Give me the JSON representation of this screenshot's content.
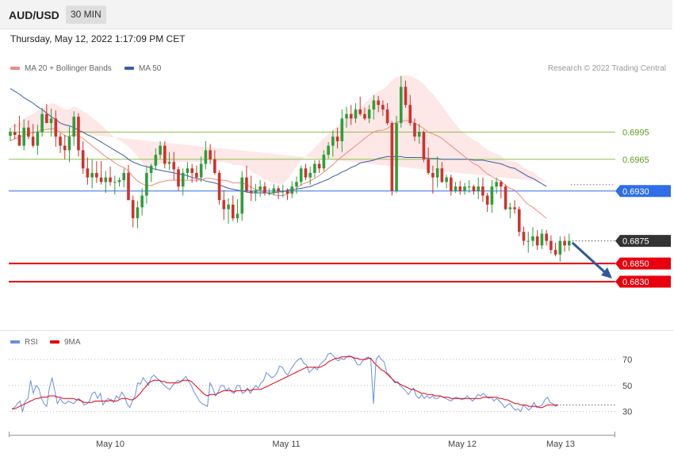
{
  "header": {
    "symbol": "AUD/USD",
    "timeframe": "30 MIN"
  },
  "datetime": "Thursday, May 12, 2022 1:17:09 PM CET",
  "legend": {
    "ma20_label": "MA 20 + Bollinger Bands",
    "ma50_label": "MA 50",
    "credit": "Research © 2022 Trading Central",
    "rsi_label": "RSI",
    "rsi_ma_label": "9MA"
  },
  "colors": {
    "up": "#2e9e3a",
    "down": "#d0312d",
    "band": "#fde3e3",
    "ma20": "#f08a80",
    "ma50": "#3b5ea8",
    "support": "#e8000d",
    "pivot": "#2f6ee8",
    "resistance": "#8ec24a",
    "last": "#333333",
    "rsi": "#6a8fe0",
    "rsi_ma": "#e3000f"
  },
  "chart_data": [
    {
      "type": "candlestick",
      "y_range": [
        0.6795,
        0.7062
      ],
      "x_tick_labels": [
        "May 10",
        "May 11",
        "May 12",
        "May 13"
      ],
      "ohlc_compact": "0.6991,0.7000,0.6985,0.6995;0.6995,0.7004,0.6987,0.6992;0.6992,0.7013,0.6981,0.6980;0.6980,0.7009,0.6975,0.7000;0.7000,0.7008,0.6987,0.6990;0.6990,0.7004,0.6978,0.6980;0.6980,0.7003,0.6970,0.6995;0.6995,0.7022,0.6990,0.7015;0.7015,0.7026,0.7005,0.7005;0.7005,0.7021,0.6990,0.7010;0.7010,0.7019,0.6979,0.6990;0.6990,0.6994,0.6972,0.6980;0.6980,0.6992,0.6965,0.6975;0.6975,0.7001,0.6962,0.6990;0.6990,0.7018,0.6980,0.7012;0.7012,0.7016,0.6968,0.6975;0.6975,0.6985,0.6949,0.6955;0.6955,0.6967,0.6937,0.6945;0.6945,0.6965,0.6933,0.6950;0.6950,0.6963,0.6939,0.6945;0.6945,0.6963,0.6937,0.6940;0.6940,0.6952,0.6928,0.6945;0.6945,0.6957,0.6936,0.6940;0.6940,0.6947,0.6926,0.6940;0.6940,0.6945,0.6935,0.6942;0.6942,0.6955,0.6934,0.6950;0.6950,0.6959,0.6920,0.6920;0.6920,0.6925,0.6890,0.6900;0.6900,0.6919,0.6889,0.6912;0.6912,0.6933,0.6903,0.6925;0.6925,0.6957,0.6916,0.6950;0.6950,0.6960,0.6940,0.6958;0.6958,0.6977,0.6953,0.6970;0.6970,0.6985,0.6966,0.6980;0.6980,0.6985,0.6955,0.6960;0.6960,0.6973,0.6953,0.6962;0.6962,0.6973,0.6942,0.6954;0.6954,0.6957,0.6930,0.6935;0.6935,0.6955,0.6925,0.6950;0.6950,0.6962,0.6943,0.6955;0.6955,0.6960,0.6939,0.6950;0.6950,0.6958,0.6940,0.6945;0.6945,0.6968,0.6940,0.6960;0.6960,0.6985,0.6954,0.6975;0.6975,0.6982,0.6960,0.6965;0.6965,0.6975,0.6948,0.6950;0.6950,0.6953,0.6915,0.6920;0.6920,0.6931,0.6898,0.6910;0.6910,0.6922,0.6894,0.6915;0.6915,0.6925,0.6897,0.6900;0.6900,0.6921,0.6895,0.6905;0.6905,0.6952,0.6897,0.6945;0.6945,0.6958,0.6928,0.6930;0.6930,0.6947,0.6919,0.6928;0.6928,0.6938,0.6919,0.6931;0.6931,0.6942,0.6924,0.6935;0.6935,0.6940,0.6925,0.6928;0.6928,0.6933,0.6925,0.6928;0.6928,0.6938,0.6925,0.6933;0.6933,0.6936,0.6921,0.6930;0.6930,0.6937,0.6923,0.6930;0.6930,0.6933,0.6920,0.6927;0.6927,0.6941,0.6922,0.6935;0.6935,0.6946,0.6927,0.6940;0.6940,0.6958,0.6936,0.6955;0.6955,0.6960,0.6942,0.6945;0.6945,0.6957,0.6937,0.6950;0.6950,0.6964,0.6945,0.6960;0.6960,0.6964,0.6950,0.6955;0.6955,0.6975,0.6952,0.6970;0.6970,0.6984,0.6966,0.6980;0.6980,0.6997,0.6968,0.6990;0.6990,0.7000,0.6977,0.6985;0.6985,0.7020,0.6973,0.7010;0.7010,0.7023,0.7000,0.7015;0.7015,0.7025,0.7003,0.7010;0.7010,0.7027,0.7005,0.7020;0.7020,0.7034,0.7013,0.7015;0.7015,0.7022,0.7008,0.7010;0.7010,0.7025,0.7005,0.7020;0.7020,0.7036,0.7009,0.7030;0.7030,0.7035,0.7017,0.7025;0.7025,0.7030,0.7013,0.7020;0.7020,0.7027,0.7003,0.7005;0.7005,0.7007,0.6925,0.6930;0.6930,0.7013,0.6928,0.7005;0.7005,0.7057,0.7000,0.7045;0.7045,0.7052,0.7022,0.7025;0.7025,0.7036,0.7002,0.7005;0.7005,0.7010,0.6985,0.6990;0.6990,0.7004,0.6982,0.6995;0.6995,0.6997,0.6962,0.6965;0.6965,0.6978,0.6948,0.6950;0.6950,0.6958,0.6927,0.6945;0.6945,0.6968,0.6934,0.6955;0.6955,0.6962,0.6939,0.6940;0.6940,0.6948,0.6933,0.6945;0.6945,0.6948,0.6925,0.6930;0.6930,0.6940,0.6928,0.6935;0.6935,0.6941,0.6926,0.6930;0.6930,0.6939,0.6926,0.6935;0.6935,0.6942,0.6928,0.6935;0.6935,0.6937,0.6926,0.6930;0.6930,0.6945,0.6921,0.6935;0.6935,0.6945,0.6918,0.6925;0.6925,0.6928,0.6907,0.6915;0.6915,0.6942,0.6906,0.6935;0.6935,0.6945,0.6927,0.6940;0.6940,0.6942,0.6922,0.6935;0.6935,0.6937,0.6909,0.6910;0.6910,0.6917,0.6900,0.6912;0.6912,0.6920,0.6905,0.6910;0.6910,0.6913,0.6880,0.6885;0.6885,0.6891,0.6870,0.6875;0.6875,0.6885,0.6862,0.6875;0.6875,0.6890,0.6869,0.6880;0.6880,0.6887,0.6865,0.6870;0.6870,0.6888,0.6866,0.6883;0.6883,0.6887,0.6870,0.6875;0.6875,0.6881,0.6861,0.6865;0.6865,0.6873,0.6858,0.6860;0.6860,0.6880,0.6852,0.6875;0.6875,0.6880,0.6863,0.6870;0.6870,0.6883,0.6864,0.6875",
      "ma50": [
        0.7043,
        0.704,
        0.7037,
        0.7033,
        0.703,
        0.7027,
        0.7023,
        0.702,
        0.7016,
        0.7012,
        0.7009,
        0.7005,
        0.7003,
        0.7002,
        0.7,
        0.6997,
        0.6995,
        0.6992,
        0.699,
        0.6987,
        0.6984,
        0.6981,
        0.6978,
        0.6975,
        0.6972,
        0.6969,
        0.6965,
        0.6962,
        0.696,
        0.6958,
        0.6957,
        0.6955,
        0.6954,
        0.6953,
        0.6952,
        0.6951,
        0.695,
        0.6949,
        0.6948,
        0.6947,
        0.6945,
        0.6944,
        0.6943,
        0.6941,
        0.694,
        0.6939,
        0.6937,
        0.6935,
        0.6933,
        0.6932,
        0.6931,
        0.693,
        0.6929,
        0.6928,
        0.6928,
        0.6928,
        0.6928,
        0.6928,
        0.6928,
        0.6929,
        0.6929,
        0.6931,
        0.6932,
        0.6932,
        0.6933,
        0.6934,
        0.6935,
        0.6937,
        0.6939,
        0.6941,
        0.6943,
        0.6946,
        0.6948,
        0.6951,
        0.6953,
        0.6956,
        0.6958,
        0.6961,
        0.6962,
        0.6963,
        0.6964,
        0.6966,
        0.6967,
        0.6968,
        0.6968,
        0.6968,
        0.6968,
        0.6967,
        0.6967,
        0.6967,
        0.6967,
        0.6967,
        0.6966,
        0.6966,
        0.6966,
        0.6965,
        0.6965,
        0.6965,
        0.6965,
        0.6965,
        0.6965,
        0.6965,
        0.6964,
        0.6964,
        0.6964,
        0.6963,
        0.6962,
        0.6961,
        0.696,
        0.6958,
        0.6956,
        0.6955,
        0.6952,
        0.6949,
        0.6946,
        0.6944,
        0.6941,
        0.6938,
        0.6935
      ],
      "ma20": [
        0.6985,
        0.6988,
        0.6989,
        0.6992,
        0.6993,
        0.6994,
        0.6996,
        0.6997,
        0.6998,
        0.6999,
        0.6998,
        0.6995,
        0.6991,
        0.699,
        0.6993,
        0.6991,
        0.6988,
        0.6984,
        0.698,
        0.6976,
        0.6972,
        0.6968,
        0.6965,
        0.6961,
        0.6958,
        0.6956,
        0.6952,
        0.6946,
        0.6941,
        0.6938,
        0.6936,
        0.6936,
        0.6938,
        0.694,
        0.6941,
        0.6942,
        0.6942,
        0.6942,
        0.6942,
        0.6942,
        0.6942,
        0.6942,
        0.6942,
        0.6944,
        0.6944,
        0.6943,
        0.6942,
        0.6942,
        0.6941,
        0.6939,
        0.6939,
        0.6939,
        0.6937,
        0.6934,
        0.6932,
        0.693,
        0.6928,
        0.6927,
        0.6926,
        0.6925,
        0.6925,
        0.6927,
        0.693,
        0.6933,
        0.6937,
        0.6939,
        0.6941,
        0.6944,
        0.6947,
        0.6951,
        0.6955,
        0.6959,
        0.6964,
        0.6968,
        0.6972,
        0.6976,
        0.698,
        0.6984,
        0.6988,
        0.6992,
        0.6995,
        0.6997,
        0.6997,
        0.6999,
        0.7003,
        0.7006,
        0.7007,
        0.7008,
        0.7007,
        0.7005,
        0.7002,
        0.6999,
        0.6995,
        0.6993,
        0.6991,
        0.6988,
        0.6984,
        0.698,
        0.6976,
        0.6972,
        0.6968,
        0.6964,
        0.696,
        0.6958,
        0.6953,
        0.6949,
        0.6946,
        0.6943,
        0.6941,
        0.6936,
        0.6933,
        0.6931,
        0.6926,
        0.692,
        0.6915,
        0.6912,
        0.6908,
        0.6904,
        0.69
      ],
      "bb_width": [
        0.0016,
        0.0016,
        0.0016,
        0.0018,
        0.002,
        0.0021,
        0.0023,
        0.0024,
        0.0026,
        0.0028,
        0.0028,
        0.0028,
        0.0029,
        0.003,
        0.003,
        0.003,
        0.003,
        0.0031,
        0.0031,
        0.0031,
        0.0031,
        0.003,
        0.0029,
        0.0028,
        0.0028,
        0.0027,
        0.0027,
        0.0028,
        0.0027,
        0.0024,
        0.002,
        0.002,
        0.002,
        0.002,
        0.002,
        0.002,
        0.002,
        0.002,
        0.002,
        0.002,
        0.002,
        0.002,
        0.002,
        0.002,
        0.002,
        0.002,
        0.002,
        0.002,
        0.002,
        0.002,
        0.002,
        0.0019,
        0.0019,
        0.0018,
        0.0017,
        0.0016,
        0.0015,
        0.0014,
        0.0013,
        0.0013,
        0.0013,
        0.0016,
        0.002,
        0.0024,
        0.0027,
        0.0029,
        0.0032,
        0.0034,
        0.0036,
        0.0037,
        0.0038,
        0.0038,
        0.0038,
        0.0038,
        0.0038,
        0.0038,
        0.0038,
        0.0038,
        0.0038,
        0.004,
        0.0041,
        0.0043,
        0.0045,
        0.0047,
        0.0049,
        0.005,
        0.005,
        0.005,
        0.005,
        0.005,
        0.005,
        0.0049,
        0.0047,
        0.0044,
        0.004,
        0.0036,
        0.0033,
        0.003,
        0.0028,
        0.0026,
        0.0026,
        0.0026,
        0.0026,
        0.0026,
        0.0026,
        0.0027,
        0.0027,
        0.0028,
        0.0028,
        0.0028,
        0.003,
        0.0032,
        0.0034,
        0.0036,
        0.0038,
        0.0039,
        0.0039,
        0.004,
        0.004
      ],
      "price_levels": [
        {
          "value": 0.6995,
          "label": "0.6995",
          "kind": "resistance"
        },
        {
          "value": 0.6965,
          "label": "0.6965",
          "kind": "resistance"
        },
        {
          "value": 0.693,
          "label": "0.6930",
          "kind": "pivot"
        },
        {
          "value": 0.6875,
          "label": "0.6875",
          "kind": "last"
        },
        {
          "value": 0.685,
          "label": "0.6850",
          "kind": "support"
        },
        {
          "value": 0.683,
          "label": "0.6830",
          "kind": "support"
        }
      ],
      "arrow": {
        "from": 0.6873,
        "to": 0.683,
        "direction": "down"
      }
    },
    {
      "type": "line",
      "name": "RSI",
      "y_range": [
        20,
        78
      ],
      "y_ticks": [
        30,
        50,
        70
      ],
      "rsi": [
        32,
        33,
        36,
        38,
        30,
        38,
        40,
        54,
        44,
        50,
        48,
        40,
        36,
        34,
        48,
        56,
        46,
        36,
        40,
        37,
        36,
        38,
        37,
        36,
        38,
        40,
        38,
        35,
        36,
        38,
        44,
        45,
        40,
        44,
        35,
        38,
        40,
        38,
        37,
        42,
        40,
        45,
        42,
        36,
        33,
        38,
        42,
        52,
        51,
        56,
        53,
        50,
        56,
        58,
        56,
        54,
        52,
        50,
        48,
        47,
        50,
        52,
        54,
        53,
        55,
        57,
        53,
        50,
        45,
        42,
        38,
        36,
        35,
        34,
        52,
        48,
        42,
        45,
        50,
        50,
        46,
        48,
        45,
        44,
        50,
        50,
        44,
        45,
        48,
        44,
        47,
        50,
        48,
        52,
        54,
        60,
        58,
        56,
        57,
        60,
        65,
        64,
        60,
        58,
        62,
        65,
        68,
        70,
        71,
        67,
        66,
        60,
        62,
        64,
        62,
        66,
        68,
        70,
        74,
        75,
        73,
        70,
        69,
        71,
        70,
        72,
        73,
        72,
        70,
        66,
        66,
        69,
        71,
        72,
        70,
        36,
        70,
        73,
        70,
        68,
        60,
        58,
        55,
        52,
        53,
        50,
        48,
        46,
        43,
        46,
        48,
        42,
        40,
        43,
        40,
        42,
        40,
        42,
        40,
        40,
        42,
        41,
        40,
        39,
        38,
        40,
        41,
        40,
        39,
        40,
        42,
        40,
        38,
        40,
        43,
        42,
        44,
        42,
        40,
        41,
        38,
        40,
        38,
        36,
        33,
        35,
        36,
        33,
        31,
        32,
        30,
        35,
        33,
        31,
        33,
        37,
        33,
        34,
        35,
        39,
        41,
        37,
        36,
        34,
        35
      ],
      "rsi_ma": [
        32,
        32,
        33,
        34,
        35,
        36,
        37,
        38,
        39,
        40,
        40,
        41,
        41,
        41,
        42,
        42,
        42,
        41,
        41,
        40,
        40,
        40,
        40,
        40,
        39,
        39,
        38,
        37,
        37,
        37,
        37,
        38,
        38,
        38,
        38,
        38,
        38,
        39,
        38,
        38,
        39,
        40,
        40,
        40,
        39,
        39,
        40,
        42,
        44,
        47,
        49,
        52,
        53,
        54,
        54,
        54,
        53,
        53,
        52,
        52,
        52,
        52,
        52,
        53,
        54,
        54,
        54,
        53,
        51,
        49,
        47,
        45,
        43,
        42,
        43,
        43,
        43,
        44,
        45,
        46,
        46,
        46,
        46,
        45,
        46,
        46,
        46,
        46,
        47,
        46,
        47,
        47,
        47,
        47,
        48,
        49,
        50,
        51,
        52,
        53,
        54,
        55,
        56,
        57,
        58,
        59,
        60,
        61,
        62,
        63,
        64,
        64,
        64,
        64,
        64,
        64,
        65,
        66,
        68,
        69,
        70,
        71,
        71,
        72,
        72,
        72,
        72,
        72,
        71,
        71,
        70,
        70,
        70,
        71,
        71,
        68,
        66,
        64,
        62,
        61,
        59,
        57,
        55,
        53,
        52,
        51,
        50,
        49,
        48,
        47,
        47,
        46,
        45,
        44,
        44,
        43,
        43,
        43,
        42,
        42,
        42,
        41,
        41,
        41,
        40,
        40,
        40,
        40,
        40,
        40,
        40,
        40,
        40,
        40,
        40,
        40,
        41,
        41,
        41,
        41,
        41,
        41,
        40,
        40,
        39,
        39,
        38,
        37,
        36,
        36,
        35,
        35,
        35,
        34,
        34,
        34,
        34,
        33,
        33,
        34,
        35,
        35,
        35,
        35,
        35
      ]
    }
  ]
}
